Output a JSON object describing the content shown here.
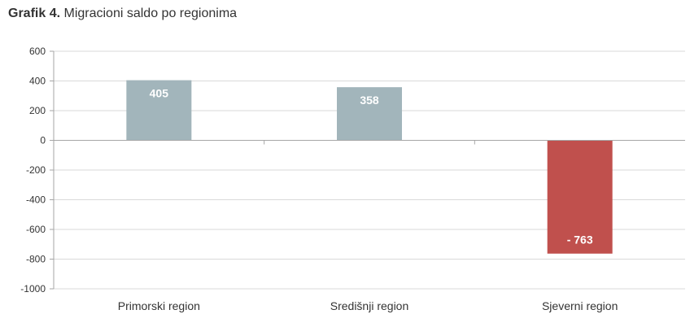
{
  "title": {
    "prefix": "Grafik 4.",
    "text": "Migracioni saldo po regionima"
  },
  "colors": {
    "positive": "#a2b5bb",
    "negative": "#c0504d",
    "grid": "#d9d9d9",
    "axis": "#a6a6a6"
  },
  "chart_data": {
    "type": "bar",
    "title": "Grafik 4. Migracioni saldo po regionima",
    "categories": [
      "Primorski region",
      "Središnji region",
      "Sjeverni region"
    ],
    "values": [
      405,
      358,
      -763
    ],
    "data_labels": [
      "405",
      "358",
      "- 763"
    ],
    "ylim": [
      -1000,
      600
    ],
    "yticks": [
      600,
      400,
      200,
      0,
      -200,
      -400,
      -600,
      -800,
      -1000
    ],
    "grid": true,
    "legend": "none"
  }
}
